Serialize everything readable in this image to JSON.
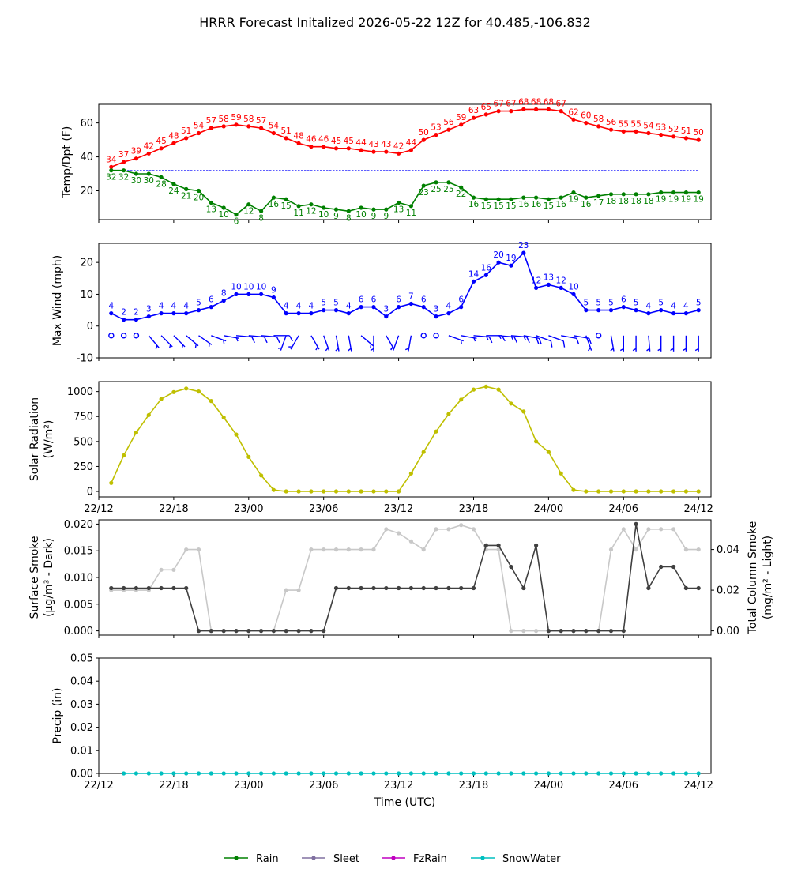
{
  "title": "HRRR Forecast Initalized 2026-05-22 12Z for 40.485,-106.832",
  "colors": {
    "temp": "#ff0000",
    "dewpoint": "#008000",
    "wind": "#0000ff",
    "solar": "#bfbf00",
    "smoke_dark": "#404040",
    "smoke_light": "#c8c8c8",
    "freezing_line": "#0000ff",
    "rain": "#008000",
    "sleet": "#8070a0",
    "fzrain": "#c000c0",
    "snowwater": "#00bfbf"
  },
  "chart_data": [
    {
      "type": "line",
      "ylabel": "Temp/Dpt (F)",
      "ylim": [
        3,
        71
      ],
      "yticks": [
        20,
        40,
        60
      ],
      "x": [
        1,
        2,
        3,
        4,
        5,
        6,
        7,
        8,
        9,
        10,
        11,
        12,
        13,
        14,
        15,
        16,
        17,
        18,
        19,
        20,
        21,
        22,
        23,
        24,
        25,
        26,
        27,
        28,
        29,
        30,
        31,
        32,
        33,
        34,
        35,
        36,
        37,
        38,
        39,
        40,
        41,
        42,
        43,
        44,
        45,
        46,
        47,
        48
      ],
      "reference_line_y": 32,
      "series": [
        {
          "key": "temp",
          "values": [
            34,
            37,
            39,
            42,
            45,
            48,
            51,
            54,
            57,
            58,
            59,
            58,
            57,
            54,
            51,
            48,
            46,
            46,
            45,
            45,
            44,
            43,
            43,
            42,
            44,
            50,
            53,
            56,
            59,
            63,
            65,
            67,
            67,
            68,
            68,
            68,
            67,
            62,
            60,
            58,
            56,
            55,
            55,
            54,
            53,
            52,
            51,
            50
          ]
        },
        {
          "key": "dewpoint",
          "values": [
            32,
            32,
            30,
            30,
            28,
            24,
            21,
            20,
            13,
            10,
            6,
            12,
            8,
            16,
            15,
            11,
            12,
            10,
            9,
            8,
            10,
            9,
            9,
            13,
            11,
            23,
            25,
            25,
            22,
            16,
            15,
            15,
            15,
            16,
            16,
            15,
            16,
            19,
            16,
            17,
            18,
            18,
            18,
            18,
            19,
            19,
            19,
            19
          ]
        }
      ]
    },
    {
      "type": "line",
      "ylabel": "Max Wind (mph)",
      "ylim": [
        -10,
        26
      ],
      "yticks": [
        -10,
        0,
        10,
        20
      ],
      "x": [
        1,
        2,
        3,
        4,
        5,
        6,
        7,
        8,
        9,
        10,
        11,
        12,
        13,
        14,
        15,
        16,
        17,
        18,
        19,
        20,
        21,
        22,
        23,
        24,
        25,
        26,
        27,
        28,
        29,
        30,
        31,
        32,
        33,
        34,
        35,
        36,
        37,
        38,
        39,
        40,
        41,
        42,
        43,
        44,
        45,
        46,
        47,
        48
      ],
      "series": [
        {
          "key": "wind",
          "values": [
            4,
            2,
            2,
            3,
            4,
            4,
            4,
            5,
            6,
            8,
            10,
            10,
            10,
            9,
            4,
            4,
            4,
            5,
            5,
            4,
            6,
            6,
            3,
            6,
            7,
            6,
            3,
            4,
            6,
            14,
            16,
            20,
            19,
            23,
            12,
            13,
            12,
            10,
            5,
            5,
            5,
            6,
            5,
            4,
            5,
            4,
            4,
            5
          ]
        }
      ],
      "barb_speeds_kt": [
        0,
        0,
        0,
        5,
        5,
        5,
        5,
        5,
        5,
        5,
        10,
        10,
        10,
        10,
        5,
        5,
        5,
        5,
        5,
        5,
        5,
        5,
        5,
        5,
        5,
        0,
        0,
        5,
        5,
        15,
        15,
        15,
        15,
        20,
        10,
        10,
        10,
        10,
        5,
        0,
        5,
        5,
        5,
        5,
        5,
        5,
        5,
        5
      ]
    },
    {
      "type": "line",
      "ylabel": "Solar Radiation (W/m²)",
      "ylim": [
        -55,
        1100
      ],
      "yticks": [
        0,
        250,
        500,
        750,
        1000
      ],
      "x": [
        1,
        2,
        3,
        4,
        5,
        6,
        7,
        8,
        9,
        10,
        11,
        12,
        13,
        14,
        15,
        16,
        17,
        18,
        19,
        20,
        21,
        22,
        23,
        24,
        25,
        26,
        27,
        28,
        29,
        30,
        31,
        32,
        33,
        34,
        35,
        36,
        37,
        38,
        39,
        40,
        41,
        42,
        43,
        44,
        45,
        46,
        47,
        48
      ],
      "series": [
        {
          "key": "solar",
          "values": [
            85,
            360,
            590,
            765,
            925,
            995,
            1030,
            1000,
            905,
            740,
            570,
            345,
            160,
            15,
            0,
            0,
            0,
            0,
            0,
            0,
            0,
            0,
            0,
            0,
            180,
            395,
            600,
            775,
            920,
            1020,
            1050,
            1020,
            880,
            800,
            500,
            395,
            180,
            15,
            0,
            0,
            0,
            0,
            0,
            0,
            0,
            0,
            0,
            0
          ]
        }
      ]
    },
    {
      "type": "line",
      "ylabel": "Surface Smoke (µg/m³ - Dark)",
      "ylabel2": "Total Column Smoke (mg/m² - Light)",
      "ylim": [
        -0.0008,
        0.0208
      ],
      "yticks": [
        0.0,
        0.005,
        0.01,
        0.015,
        0.02
      ],
      "ylim2": [
        -0.0021,
        0.0546
      ],
      "yticks2": [
        0.0,
        0.02,
        0.04
      ],
      "x": [
        1,
        2,
        3,
        4,
        5,
        6,
        7,
        8,
        9,
        10,
        11,
        12,
        13,
        14,
        15,
        16,
        17,
        18,
        19,
        20,
        21,
        22,
        23,
        24,
        25,
        26,
        27,
        28,
        29,
        30,
        31,
        32,
        33,
        34,
        35,
        36,
        37,
        38,
        39,
        40,
        41,
        42,
        43,
        44,
        45,
        46,
        47,
        48
      ],
      "series": [
        {
          "key": "smoke_light",
          "axis": "right",
          "values": [
            0.02,
            0.02,
            0.02,
            0.02,
            0.03,
            0.03,
            0.04,
            0.04,
            0,
            0,
            0,
            0,
            0,
            0,
            0.02,
            0.02,
            0.04,
            0.04,
            0.04,
            0.04,
            0.04,
            0.04,
            0.05,
            0.048,
            0.044,
            0.04,
            0.05,
            0.05,
            0.052,
            0.05,
            0.04,
            0.04,
            0,
            0,
            0,
            0,
            0,
            0,
            0,
            0,
            0.04,
            0.05,
            0.04,
            0.05,
            0.05,
            0.05,
            0.04,
            0.04
          ]
        },
        {
          "key": "smoke_dark",
          "axis": "left",
          "values": [
            0.008,
            0.008,
            0.008,
            0.008,
            0.008,
            0.008,
            0.008,
            0,
            0,
            0,
            0,
            0,
            0,
            0,
            0,
            0,
            0,
            0,
            0.008,
            0.008,
            0.008,
            0.008,
            0.008,
            0.008,
            0.008,
            0.008,
            0.008,
            0.008,
            0.008,
            0.008,
            0.016,
            0.016,
            0.012,
            0.008,
            0.016,
            0,
            0,
            0,
            0,
            0,
            0,
            0,
            0.02,
            0.008,
            0.012,
            0.012,
            0.008,
            0.008
          ]
        }
      ]
    },
    {
      "type": "line",
      "ylabel": "Precip (in)",
      "xlabel": "Time (UTC)",
      "ylim": [
        0,
        0.05
      ],
      "yticks": [
        0.0,
        0.01,
        0.02,
        0.03,
        0.04,
        0.05
      ],
      "x": [
        2,
        3,
        4,
        5,
        6,
        7,
        8,
        9,
        10,
        11,
        12,
        13,
        14,
        15,
        16,
        17,
        18,
        19,
        20,
        21,
        22,
        23,
        24,
        25,
        26,
        27,
        28,
        29,
        30,
        31,
        32,
        33,
        34,
        35,
        36,
        37,
        38,
        39,
        40,
        41,
        42,
        43,
        44,
        45,
        46,
        47,
        48
      ],
      "series": [
        {
          "key": "snowwater",
          "name": "SnowWater",
          "values": [
            0,
            0,
            0,
            0,
            0,
            0,
            0,
            0,
            0,
            0,
            0,
            0,
            0,
            0,
            0,
            0,
            0,
            0,
            0,
            0,
            0,
            0,
            0,
            0,
            0,
            0,
            0,
            0,
            0,
            0,
            0,
            0,
            0,
            0,
            0,
            0,
            0,
            0,
            0,
            0,
            0,
            0,
            0,
            0,
            0,
            0,
            0
          ]
        }
      ]
    }
  ],
  "xaxis": {
    "xlim": [
      0,
      49
    ],
    "tick_positions": [
      0,
      6,
      12,
      18,
      24,
      30,
      36,
      42,
      48
    ],
    "tick_labels": [
      "22/12",
      "22/18",
      "23/00",
      "23/06",
      "23/12",
      "23/18",
      "24/00",
      "24/06",
      "24/12"
    ]
  },
  "legend": {
    "placement": "bottom-center",
    "entries": [
      {
        "key": "rain",
        "label": "Rain"
      },
      {
        "key": "sleet",
        "label": "Sleet"
      },
      {
        "key": "fzrain",
        "label": "FzRain"
      },
      {
        "key": "snowwater",
        "label": "SnowWater"
      }
    ]
  }
}
